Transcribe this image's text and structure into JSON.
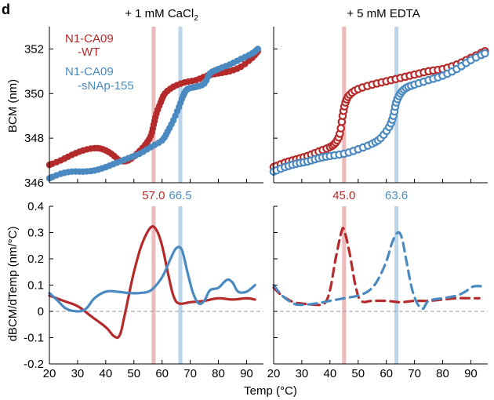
{
  "panel_label": "d",
  "colors": {
    "wt": "#b52a2a",
    "snap": "#4a8ac0",
    "wt_band": "#e9a9a9",
    "snap_band": "#a9cbe3",
    "zero": "#999999"
  },
  "chart_data": {
    "type": "multi-panel line/scatter",
    "x_axis": {
      "label": "Temp (°C)",
      "range": [
        20,
        96
      ],
      "ticks": [
        "20",
        "30",
        "40",
        "50",
        "60",
        "70",
        "80",
        "90"
      ]
    },
    "top_y_axis": {
      "label": "BCM (nm)",
      "range": [
        346,
        353
      ],
      "ticks": [
        "346",
        "348",
        "350",
        "352"
      ]
    },
    "bottom_y_axis": {
      "label": "dBCM/dTemp (nm/°C)",
      "range": [
        -0.2,
        0.4
      ],
      "ticks": [
        "-0.2",
        "-0.1",
        "0",
        "0.1",
        "0.2",
        "0.3",
        "0.4"
      ]
    },
    "legend": [
      {
        "lines": [
          "N1-CA09",
          "-WT"
        ],
        "color_key": "wt"
      },
      {
        "lines": [
          "N1-CA09",
          "-sNAp-155"
        ],
        "color_key": "snap"
      }
    ],
    "panels": [
      {
        "title": "+ 1 mM CaCl2",
        "title_parts": [
          "+ 1 mM CaCl",
          "2"
        ],
        "bcm_marker": "filled",
        "deriv_style": "solid",
        "tm": [
          {
            "value": 57.0,
            "label": "57.0",
            "color_key": "wt"
          },
          {
            "value": 66.5,
            "label": "66.5",
            "color_key": "snap"
          }
        ],
        "bcm": {
          "wt": [
            [
              20,
              346.8
            ],
            [
              24,
              347.0
            ],
            [
              28,
              347.25
            ],
            [
              32,
              347.45
            ],
            [
              36,
              347.55
            ],
            [
              39,
              347.5
            ],
            [
              42,
              347.3
            ],
            [
              45,
              347.0
            ],
            [
              48,
              347.0
            ],
            [
              51,
              347.3
            ],
            [
              54,
              347.7
            ],
            [
              56,
              348.1
            ],
            [
              57,
              348.6
            ],
            [
              58,
              349.1
            ],
            [
              59.5,
              349.6
            ],
            [
              61,
              350.0
            ],
            [
              64,
              350.3
            ],
            [
              68,
              350.5
            ],
            [
              72,
              350.6
            ],
            [
              76,
              350.8
            ],
            [
              80,
              350.9
            ],
            [
              84,
              351.0
            ],
            [
              88,
              351.2
            ],
            [
              92,
              351.6
            ],
            [
              94,
              351.9
            ]
          ],
          "snap": [
            [
              20,
              346.2
            ],
            [
              24,
              346.4
            ],
            [
              28,
              346.5
            ],
            [
              32,
              346.5
            ],
            [
              36,
              346.55
            ],
            [
              40,
              346.7
            ],
            [
              44,
              346.9
            ],
            [
              48,
              347.1
            ],
            [
              52,
              347.3
            ],
            [
              56,
              347.6
            ],
            [
              60,
              347.9
            ],
            [
              62,
              348.3
            ],
            [
              64,
              348.8
            ],
            [
              66,
              349.4
            ],
            [
              67.5,
              349.9
            ],
            [
              69,
              350.2
            ],
            [
              72,
              350.3
            ],
            [
              75,
              350.45
            ],
            [
              77,
              350.9
            ],
            [
              80,
              351.1
            ],
            [
              84,
              351.3
            ],
            [
              88,
              351.55
            ],
            [
              92,
              351.8
            ],
            [
              94,
              352.0
            ]
          ]
        },
        "deriv": {
          "wt": [
            [
              20,
              0.06
            ],
            [
              25,
              0.04
            ],
            [
              30,
              0.02
            ],
            [
              35,
              -0.02
            ],
            [
              40,
              -0.06
            ],
            [
              43,
              -0.095
            ],
            [
              45,
              -0.09
            ],
            [
              47,
              0.0
            ],
            [
              50,
              0.15
            ],
            [
              53,
              0.26
            ],
            [
              56,
              0.32
            ],
            [
              58,
              0.31
            ],
            [
              60,
              0.25
            ],
            [
              62,
              0.15
            ],
            [
              64,
              0.06
            ],
            [
              66,
              0.03
            ],
            [
              70,
              0.035
            ],
            [
              75,
              0.04
            ],
            [
              80,
              0.05
            ],
            [
              85,
              0.045
            ],
            [
              90,
              0.05
            ],
            [
              93,
              0.045
            ]
          ],
          "snap": [
            [
              20,
              0.07
            ],
            [
              23,
              0.04
            ],
            [
              26,
              0.01
            ],
            [
              30,
              0.0
            ],
            [
              33,
              0.01
            ],
            [
              36,
              0.05
            ],
            [
              40,
              0.075
            ],
            [
              44,
              0.075
            ],
            [
              48,
              0.07
            ],
            [
              52,
              0.07
            ],
            [
              56,
              0.08
            ],
            [
              60,
              0.13
            ],
            [
              63,
              0.2
            ],
            [
              65,
              0.24
            ],
            [
              67,
              0.235
            ],
            [
              69,
              0.15
            ],
            [
              71,
              0.07
            ],
            [
              73,
              0.03
            ],
            [
              75,
              0.04
            ],
            [
              77,
              0.08
            ],
            [
              80,
              0.09
            ],
            [
              83,
              0.12
            ],
            [
              85,
              0.11
            ],
            [
              87,
              0.075
            ],
            [
              90,
              0.075
            ],
            [
              93,
              0.1
            ]
          ]
        }
      },
      {
        "title": "+ 5 mM EDTA",
        "title_parts": [
          "+ 5 mM EDTA",
          ""
        ],
        "bcm_marker": "open",
        "deriv_style": "dashed",
        "tm": [
          {
            "value": 45.0,
            "label": "45.0",
            "color_key": "wt"
          },
          {
            "value": 63.6,
            "label": "63.6",
            "color_key": "snap"
          }
        ],
        "bcm": {
          "wt": [
            [
              20,
              346.7
            ],
            [
              24,
              346.9
            ],
            [
              28,
              347.05
            ],
            [
              32,
              347.2
            ],
            [
              36,
              347.4
            ],
            [
              40,
              347.6
            ],
            [
              42,
              347.8
            ],
            [
              43.5,
              348.2
            ],
            [
              44.5,
              349.0
            ],
            [
              45.5,
              349.6
            ],
            [
              47,
              349.95
            ],
            [
              50,
              350.2
            ],
            [
              55,
              350.4
            ],
            [
              60,
              350.55
            ],
            [
              65,
              350.7
            ],
            [
              70,
              350.85
            ],
            [
              75,
              351.0
            ],
            [
              80,
              351.1
            ],
            [
              85,
              351.3
            ],
            [
              90,
              351.6
            ],
            [
              95,
              351.9
            ]
          ],
          "snap": [
            [
              20,
              346.5
            ],
            [
              24,
              346.7
            ],
            [
              28,
              346.85
            ],
            [
              32,
              346.95
            ],
            [
              36,
              347.1
            ],
            [
              40,
              347.2
            ],
            [
              45,
              347.3
            ],
            [
              50,
              347.5
            ],
            [
              55,
              347.75
            ],
            [
              58,
              348.0
            ],
            [
              61,
              348.5
            ],
            [
              62.5,
              349.0
            ],
            [
              63.5,
              349.6
            ],
            [
              65,
              350.0
            ],
            [
              67,
              350.25
            ],
            [
              70,
              350.4
            ],
            [
              75,
              350.6
            ],
            [
              80,
              350.8
            ],
            [
              85,
              351.1
            ],
            [
              90,
              351.5
            ],
            [
              95,
              351.8
            ]
          ]
        },
        "deriv": {
          "wt": [
            [
              20,
              0.09
            ],
            [
              23,
              0.06
            ],
            [
              27,
              0.035
            ],
            [
              30,
              0.03
            ],
            [
              35,
              0.025
            ],
            [
              38,
              0.03
            ],
            [
              40,
              0.08
            ],
            [
              42,
              0.2
            ],
            [
              44,
              0.3
            ],
            [
              45,
              0.31
            ],
            [
              47,
              0.22
            ],
            [
              49,
              0.1
            ],
            [
              51,
              0.04
            ],
            [
              55,
              0.04
            ],
            [
              60,
              0.04
            ],
            [
              65,
              0.035
            ],
            [
              70,
              0.04
            ],
            [
              75,
              0.04
            ],
            [
              80,
              0.045
            ],
            [
              85,
              0.05
            ],
            [
              90,
              0.05
            ],
            [
              93,
              0.05
            ]
          ],
          "snap": [
            [
              20,
              0.1
            ],
            [
              23,
              0.06
            ],
            [
              27,
              0.03
            ],
            [
              30,
              0.025
            ],
            [
              35,
              0.03
            ],
            [
              40,
              0.04
            ],
            [
              45,
              0.05
            ],
            [
              50,
              0.06
            ],
            [
              54,
              0.08
            ],
            [
              57,
              0.12
            ],
            [
              60,
              0.19
            ],
            [
              62,
              0.26
            ],
            [
              64,
              0.3
            ],
            [
              65.5,
              0.28
            ],
            [
              67,
              0.2
            ],
            [
              69,
              0.09
            ],
            [
              71,
              0.03
            ],
            [
              73,
              0.01
            ],
            [
              75,
              0.04
            ],
            [
              80,
              0.05
            ],
            [
              85,
              0.06
            ],
            [
              88,
              0.075
            ],
            [
              91,
              0.095
            ],
            [
              95,
              0.095
            ]
          ]
        }
      }
    ]
  }
}
